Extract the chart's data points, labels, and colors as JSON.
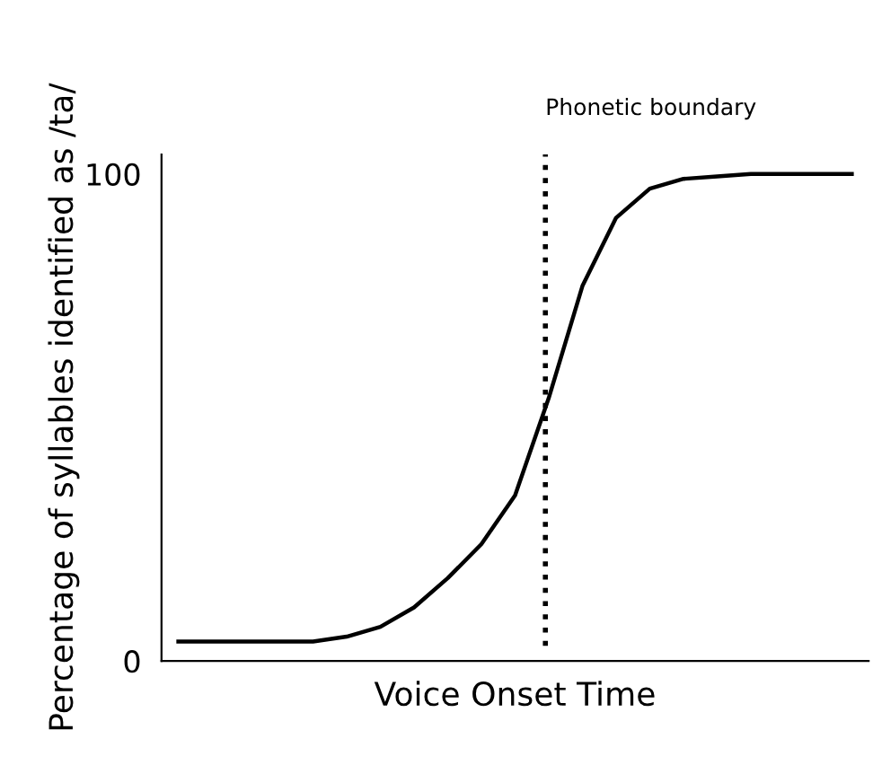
{
  "chart_data": {
    "type": "line",
    "xlabel": "Voice Onset Time",
    "ylabel": "Percentage of syllables identified as /ta/",
    "categories": [
      null,
      null,
      null,
      null,
      null,
      null,
      null,
      null,
      null,
      null,
      null,
      null,
      null,
      null,
      null,
      null,
      null,
      null,
      null,
      null,
      null
    ],
    "series": [
      {
        "color": "#000000",
        "values": [
          4,
          4,
          4,
          4,
          4,
          5,
          7,
          11,
          17,
          24,
          34,
          54,
          77,
          91,
          97,
          99,
          99.5,
          100,
          100,
          100,
          100
        ]
      }
    ],
    "ylim": [
      0,
      104
    ],
    "yticks": [
      0,
      100
    ],
    "tick_labels": "y",
    "marker": "none",
    "line_style": "solid",
    "annotations": [
      "Phonetic boundary"
    ]
  }
}
